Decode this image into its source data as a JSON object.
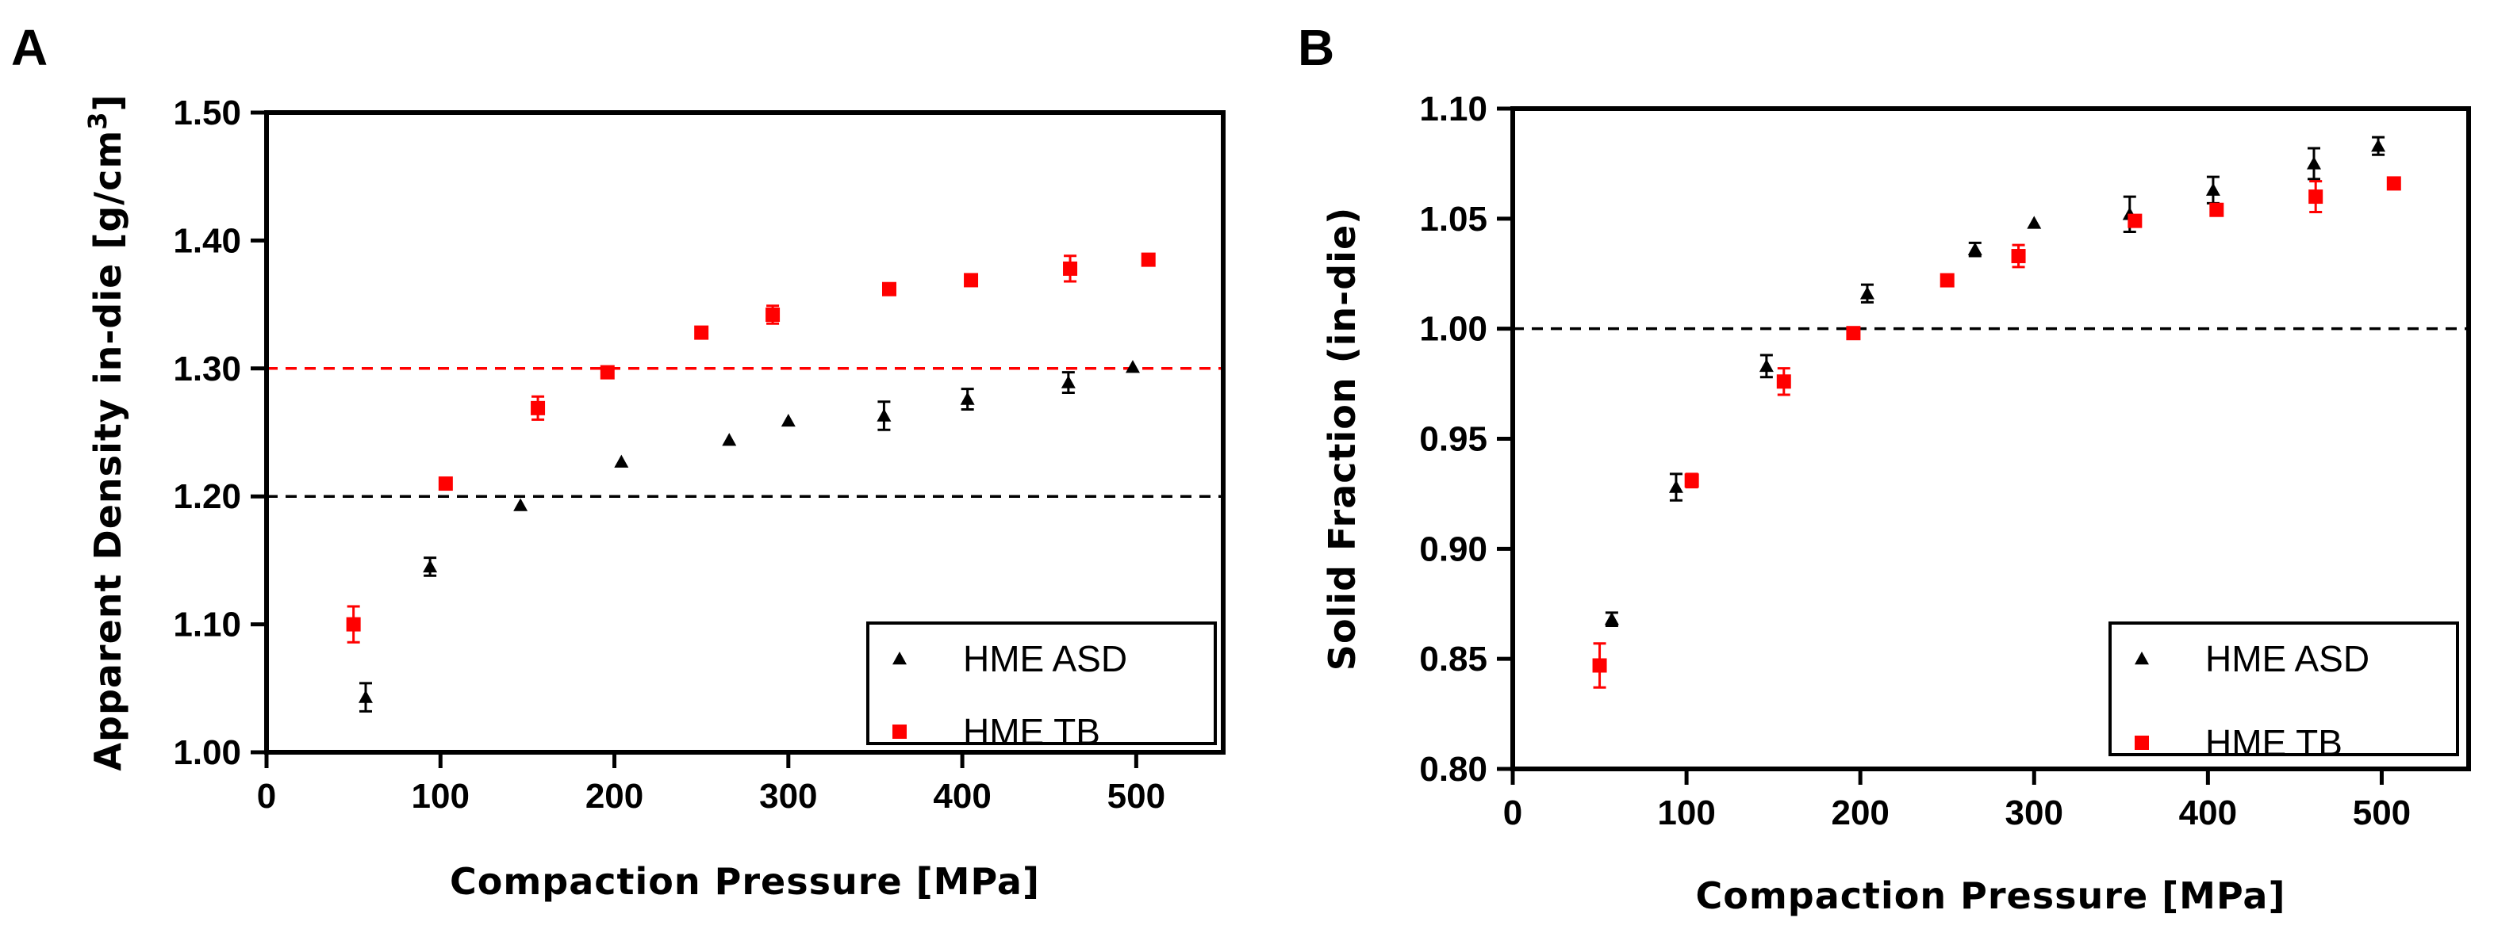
{
  "chart_data": [
    {
      "type": "scatter",
      "panel_label": "A",
      "title": "",
      "xlabel": "Compaction  Pressure  [MPa]",
      "ylabel_main": "Apparent  Density in-die [g/cm",
      "ylabel_sup": "3",
      "ylabel_end": "]",
      "xlim": [
        0,
        550
      ],
      "ylim": [
        1.0,
        1.5
      ],
      "xticks": [
        0,
        100,
        200,
        300,
        400,
        500
      ],
      "xtick_labels": [
        "0",
        "100",
        "200",
        "300",
        "400",
        "500"
      ],
      "yticks": [
        1.0,
        1.1,
        1.2,
        1.3,
        1.4,
        1.5
      ],
      "ytick_labels": [
        "1.00",
        "1.10",
        "1.20",
        "1.30",
        "1.40",
        "1.50"
      ],
      "grid": false,
      "legend_position": "bottom-right",
      "reference_lines": [
        {
          "y": 1.3,
          "color": "#ff0000",
          "style": "dashed"
        },
        {
          "y": 1.2,
          "color": "#000000",
          "style": "dashed"
        }
      ],
      "series": [
        {
          "name": "HME ASD",
          "marker": "triangle",
          "color": "#000000",
          "x": [
            57,
            94,
            146,
            204,
            266,
            300,
            355,
            403,
            461,
            498
          ],
          "y": [
            1.043,
            1.145,
            1.193,
            1.227,
            1.244,
            1.259,
            1.263,
            1.276,
            1.289,
            1.301
          ],
          "err": [
            0.011,
            0.007,
            0,
            0,
            0,
            0,
            0.011,
            0.008,
            0.008,
            0
          ]
        },
        {
          "name": "HME TB",
          "marker": "square",
          "color": "#ff0000",
          "x": [
            50,
            103,
            156,
            196,
            250,
            291,
            358,
            405,
            462,
            507
          ],
          "y": [
            1.1,
            1.21,
            1.269,
            1.297,
            1.328,
            1.342,
            1.362,
            1.369,
            1.378,
            1.385
          ],
          "err": [
            0.014,
            0,
            0.009,
            0,
            0,
            0.007,
            0,
            0,
            0.01,
            0
          ]
        }
      ]
    },
    {
      "type": "scatter",
      "panel_label": "B",
      "title": "",
      "xlabel": "Compaction  Pressure  [MPa]",
      "ylabel_main": "Solid  Fraction  (in-die)",
      "ylabel_sup": "",
      "ylabel_end": "",
      "xlim": [
        0,
        550
      ],
      "ylim": [
        0.8,
        1.1
      ],
      "xticks": [
        0,
        100,
        200,
        300,
        400,
        500
      ],
      "xtick_labels": [
        "0",
        "100",
        "200",
        "300",
        "400",
        "500"
      ],
      "yticks": [
        0.8,
        0.85,
        0.9,
        0.95,
        1.0,
        1.05,
        1.1
      ],
      "ytick_labels": [
        "0.80",
        "0.85",
        "0.90",
        "0.95",
        "1.00",
        "1.05",
        "1.10"
      ],
      "grid": false,
      "legend_position": "bottom-right",
      "reference_lines": [
        {
          "y": 1.0,
          "color": "#000000",
          "style": "dashed"
        }
      ],
      "series": [
        {
          "name": "HME ASD",
          "marker": "triangle",
          "color": "#000000",
          "x": [
            57,
            94,
            146,
            204,
            266,
            300,
            355,
            403,
            461,
            498
          ],
          "y": [
            0.868,
            0.928,
            0.983,
            1.016,
            1.036,
            1.048,
            1.052,
            1.063,
            1.075,
            1.083
          ],
          "err": [
            0.003,
            0.006,
            0.005,
            0.004,
            0.003,
            0,
            0.008,
            0.006,
            0.007,
            0.004
          ]
        },
        {
          "name": "HME TB",
          "marker": "square",
          "color": "#ff0000",
          "x": [
            50,
            103,
            156,
            196,
            250,
            291,
            358,
            405,
            462,
            507
          ],
          "y": [
            0.847,
            0.931,
            0.976,
            0.998,
            1.022,
            1.033,
            1.049,
            1.054,
            1.06,
            1.066
          ],
          "err": [
            0.01,
            0.003,
            0.006,
            0,
            0,
            0.005,
            0,
            0,
            0.007,
            0
          ]
        }
      ]
    }
  ]
}
